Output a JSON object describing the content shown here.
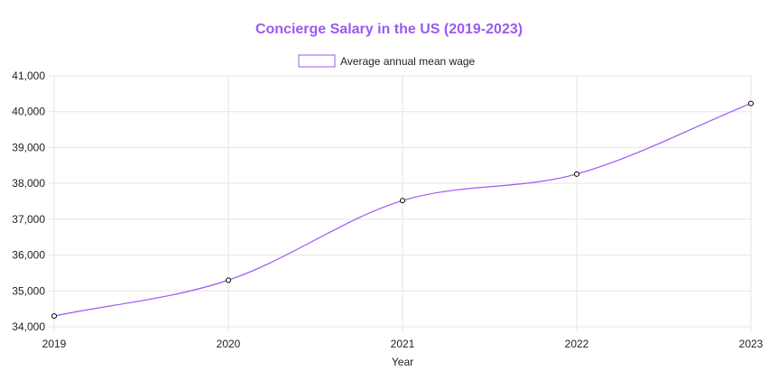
{
  "chart_data": {
    "type": "line",
    "title": "Concierge Salary in the US (2019-2023)",
    "xlabel": "Year",
    "ylabel": "",
    "categories": [
      "2019",
      "2020",
      "2021",
      "2022",
      "2023"
    ],
    "ylim": [
      34000,
      41000
    ],
    "y_ticks": [
      "34,000",
      "35,000",
      "36,000",
      "37,000",
      "38,000",
      "39,000",
      "40,000",
      "41,000"
    ],
    "grid": true,
    "legend_position": "top",
    "series": [
      {
        "name": "Average annual mean wage",
        "values": [
          34300,
          35300,
          37520,
          38260,
          40230
        ]
      }
    ],
    "colors": {
      "title": "#9b59f0",
      "line": "#9b59f0",
      "point_stroke": "#000000",
      "grid": "#e5e5e5"
    }
  }
}
